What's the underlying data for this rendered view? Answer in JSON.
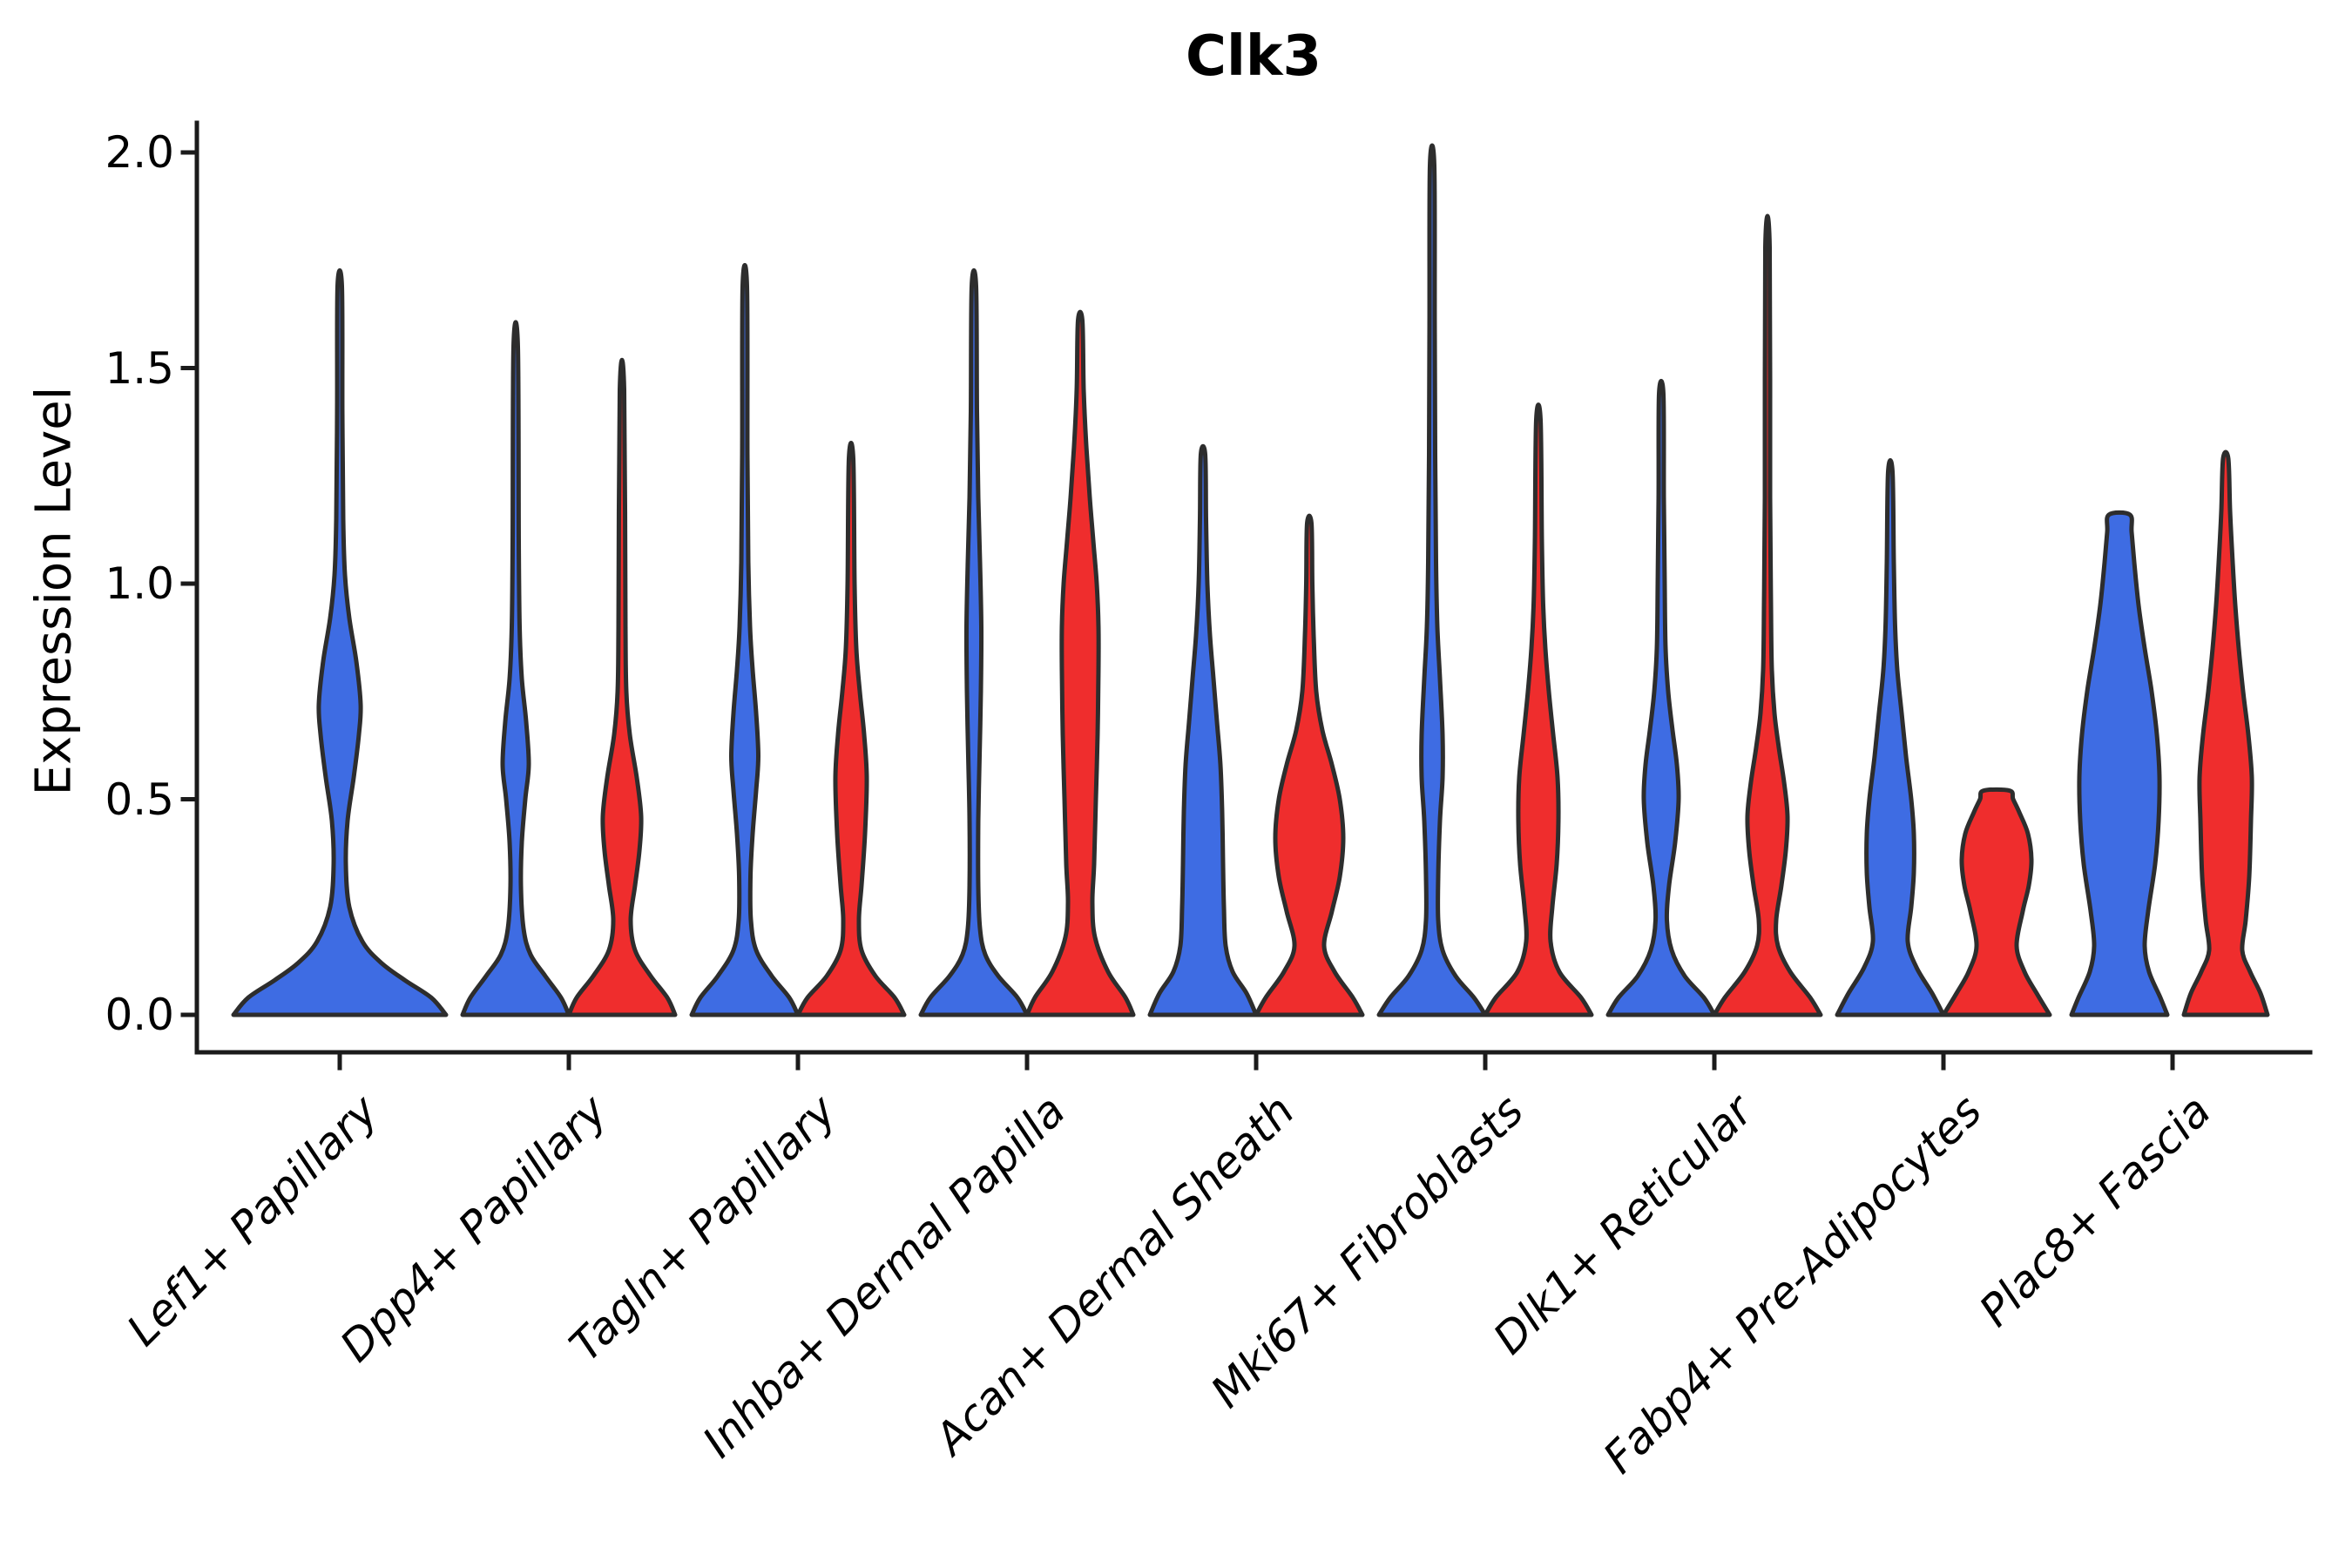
{
  "title": "Clk3",
  "chart_data": {
    "type": "violin",
    "title": "Clk3",
    "xlabel": "",
    "ylabel": "Expression Level",
    "ylim": [
      0,
      2.07
    ],
    "grid": false,
    "legend": "none",
    "y_ticks": [
      {
        "value": 0.0,
        "label": "0.0"
      },
      {
        "value": 0.5,
        "label": "0.5"
      },
      {
        "value": 1.0,
        "label": "1.0"
      },
      {
        "value": 1.5,
        "label": "1.5"
      },
      {
        "value": 2.0,
        "label": "2.0"
      }
    ],
    "categories": [
      "Lef1+ Papillary",
      "Dpp4+ Papillary",
      "Tagln+ Papillary",
      "Inhba+ Dermal Papilla",
      "Acan+ Dermal Sheath",
      "Mki67+ Fibroblasts",
      "Dlk1+ Reticular",
      "Fabp4+ Pre-Adipocytes",
      "Plac8+ Fascia"
    ],
    "series": [
      {
        "name": "blue",
        "color": "#3E6CE3"
      },
      {
        "name": "red",
        "color": "#EF2D2D"
      }
    ],
    "edge_color": "#2D2D2D",
    "axis_color": "#1B1B1B",
    "violins": [
      {
        "category": 0,
        "series": 0,
        "side": "center",
        "max": 1.69,
        "flat_top": false,
        "profile": [
          [
            0,
            122
          ],
          [
            0.04,
            105
          ],
          [
            0.08,
            75
          ],
          [
            0.12,
            48
          ],
          [
            0.17,
            26
          ],
          [
            0.25,
            11
          ],
          [
            0.35,
            7
          ],
          [
            0.45,
            9
          ],
          [
            0.55,
            16
          ],
          [
            0.65,
            22
          ],
          [
            0.72,
            24
          ],
          [
            0.82,
            19
          ],
          [
            0.92,
            11
          ],
          [
            1.02,
            6
          ],
          [
            1.15,
            4
          ],
          [
            1.4,
            3
          ],
          [
            1.69,
            2.5
          ]
        ]
      },
      {
        "category": 1,
        "series": 0,
        "side": "left",
        "max": 1.55,
        "flat_top": false,
        "profile": [
          [
            0,
            61
          ],
          [
            0.04,
            52
          ],
          [
            0.09,
            34
          ],
          [
            0.14,
            17
          ],
          [
            0.2,
            9
          ],
          [
            0.3,
            6
          ],
          [
            0.4,
            7
          ],
          [
            0.5,
            11
          ],
          [
            0.58,
            15
          ],
          [
            0.68,
            12
          ],
          [
            0.78,
            7
          ],
          [
            0.9,
            4.5
          ],
          [
            1.1,
            3.5
          ],
          [
            1.55,
            2.5
          ]
        ]
      },
      {
        "category": 1,
        "series": 1,
        "side": "right",
        "max": 1.45,
        "flat_top": false,
        "profile": [
          [
            0,
            61
          ],
          [
            0.04,
            52
          ],
          [
            0.09,
            33
          ],
          [
            0.15,
            15
          ],
          [
            0.22,
            10
          ],
          [
            0.3,
            15
          ],
          [
            0.38,
            20
          ],
          [
            0.46,
            22
          ],
          [
            0.55,
            17
          ],
          [
            0.65,
            9
          ],
          [
            0.75,
            5
          ],
          [
            0.9,
            4
          ],
          [
            1.45,
            2.5
          ]
        ]
      },
      {
        "category": 2,
        "series": 0,
        "side": "left",
        "max": 1.69,
        "flat_top": false,
        "profile": [
          [
            0,
            61
          ],
          [
            0.04,
            51
          ],
          [
            0.09,
            31
          ],
          [
            0.15,
            13
          ],
          [
            0.22,
            7
          ],
          [
            0.32,
            6.5
          ],
          [
            0.42,
            9
          ],
          [
            0.52,
            13
          ],
          [
            0.6,
            15.5
          ],
          [
            0.7,
            13
          ],
          [
            0.8,
            9
          ],
          [
            0.9,
            6
          ],
          [
            1.05,
            4
          ],
          [
            1.3,
            3
          ],
          [
            1.69,
            2.5
          ]
        ]
      },
      {
        "category": 2,
        "series": 1,
        "side": "right",
        "max": 1.29,
        "flat_top": false,
        "profile": [
          [
            0,
            61
          ],
          [
            0.04,
            50
          ],
          [
            0.09,
            28
          ],
          [
            0.15,
            12
          ],
          [
            0.22,
            9
          ],
          [
            0.3,
            12
          ],
          [
            0.42,
            16
          ],
          [
            0.55,
            18
          ],
          [
            0.65,
            15
          ],
          [
            0.75,
            10
          ],
          [
            0.85,
            6
          ],
          [
            1.0,
            4
          ],
          [
            1.29,
            2.5
          ]
        ]
      },
      {
        "category": 3,
        "series": 0,
        "side": "left",
        "max": 1.69,
        "flat_top": false,
        "profile": [
          [
            0,
            61
          ],
          [
            0.04,
            50
          ],
          [
            0.09,
            28
          ],
          [
            0.14,
            13
          ],
          [
            0.2,
            7
          ],
          [
            0.3,
            5
          ],
          [
            0.45,
            5
          ],
          [
            0.6,
            6.5
          ],
          [
            0.75,
            8
          ],
          [
            0.9,
            8.5
          ],
          [
            1.05,
            7
          ],
          [
            1.2,
            5
          ],
          [
            1.4,
            3.5
          ],
          [
            1.69,
            2.5
          ]
        ]
      },
      {
        "category": 3,
        "series": 1,
        "side": "right",
        "max": 1.61,
        "flat_top": false,
        "profile": [
          [
            0,
            61
          ],
          [
            0.04,
            52
          ],
          [
            0.1,
            32
          ],
          [
            0.18,
            17
          ],
          [
            0.26,
            14
          ],
          [
            0.35,
            16
          ],
          [
            0.5,
            18
          ],
          [
            0.65,
            20
          ],
          [
            0.8,
            21
          ],
          [
            0.9,
            21
          ],
          [
            1.0,
            19
          ],
          [
            1.1,
            15
          ],
          [
            1.2,
            11
          ],
          [
            1.32,
            7
          ],
          [
            1.45,
            4
          ],
          [
            1.61,
            2.5
          ]
        ]
      },
      {
        "category": 4,
        "series": 0,
        "side": "left",
        "max": 1.3,
        "flat_top": false,
        "profile": [
          [
            0,
            61
          ],
          [
            0.05,
            50
          ],
          [
            0.1,
            34
          ],
          [
            0.16,
            26
          ],
          [
            0.25,
            24
          ],
          [
            0.35,
            23
          ],
          [
            0.47,
            22
          ],
          [
            0.58,
            20
          ],
          [
            0.68,
            16
          ],
          [
            0.78,
            12
          ],
          [
            0.88,
            8
          ],
          [
            1.0,
            5
          ],
          [
            1.15,
            3.5
          ],
          [
            1.3,
            2.5
          ]
        ]
      },
      {
        "category": 4,
        "series": 1,
        "side": "right",
        "max": 1.14,
        "flat_top": false,
        "profile": [
          [
            0,
            61
          ],
          [
            0.04,
            50
          ],
          [
            0.1,
            29
          ],
          [
            0.16,
            17
          ],
          [
            0.24,
            26
          ],
          [
            0.32,
            35
          ],
          [
            0.41,
            39
          ],
          [
            0.5,
            35
          ],
          [
            0.58,
            26
          ],
          [
            0.66,
            15
          ],
          [
            0.75,
            8
          ],
          [
            0.88,
            5
          ],
          [
            1.0,
            3.5
          ],
          [
            1.14,
            2.5
          ]
        ]
      },
      {
        "category": 5,
        "series": 0,
        "side": "left",
        "max": 1.97,
        "flat_top": false,
        "profile": [
          [
            0,
            61
          ],
          [
            0.04,
            48
          ],
          [
            0.09,
            27
          ],
          [
            0.15,
            12
          ],
          [
            0.22,
            7
          ],
          [
            0.32,
            7
          ],
          [
            0.45,
            9
          ],
          [
            0.55,
            12
          ],
          [
            0.65,
            12
          ],
          [
            0.78,
            9
          ],
          [
            0.9,
            6
          ],
          [
            1.05,
            4.5
          ],
          [
            1.3,
            3.5
          ],
          [
            1.6,
            3
          ],
          [
            1.97,
            2.5
          ]
        ]
      },
      {
        "category": 5,
        "series": 1,
        "side": "right",
        "max": 1.38,
        "flat_top": false,
        "profile": [
          [
            0,
            61
          ],
          [
            0.04,
            49
          ],
          [
            0.1,
            24
          ],
          [
            0.17,
            14
          ],
          [
            0.25,
            16
          ],
          [
            0.35,
            21
          ],
          [
            0.45,
            23
          ],
          [
            0.55,
            22
          ],
          [
            0.65,
            17
          ],
          [
            0.75,
            12
          ],
          [
            0.85,
            8
          ],
          [
            0.95,
            5.5
          ],
          [
            1.1,
            4
          ],
          [
            1.38,
            2.5
          ]
        ]
      },
      {
        "category": 6,
        "series": 0,
        "side": "left",
        "max": 1.44,
        "flat_top": false,
        "profile": [
          [
            0,
            61
          ],
          [
            0.04,
            49
          ],
          [
            0.09,
            27
          ],
          [
            0.15,
            12
          ],
          [
            0.22,
            6.5
          ],
          [
            0.3,
            9
          ],
          [
            0.4,
            16
          ],
          [
            0.5,
            20
          ],
          [
            0.58,
            18
          ],
          [
            0.66,
            13
          ],
          [
            0.75,
            8
          ],
          [
            0.85,
            5
          ],
          [
            1.0,
            4
          ],
          [
            1.2,
            3
          ],
          [
            1.44,
            2.5
          ]
        ]
      },
      {
        "category": 6,
        "series": 1,
        "side": "right",
        "max": 1.78,
        "flat_top": false,
        "profile": [
          [
            0,
            61
          ],
          [
            0.04,
            49
          ],
          [
            0.1,
            26
          ],
          [
            0.16,
            12
          ],
          [
            0.22,
            10
          ],
          [
            0.3,
            16
          ],
          [
            0.38,
            21
          ],
          [
            0.46,
            23
          ],
          [
            0.54,
            19
          ],
          [
            0.62,
            13
          ],
          [
            0.7,
            8
          ],
          [
            0.8,
            5
          ],
          [
            0.95,
            4
          ],
          [
            1.2,
            3
          ],
          [
            1.78,
            2.5
          ]
        ]
      },
      {
        "category": 7,
        "series": 0,
        "side": "left",
        "max": 1.26,
        "flat_top": false,
        "profile": [
          [
            0,
            61
          ],
          [
            0.05,
            48
          ],
          [
            0.11,
            30
          ],
          [
            0.17,
            20
          ],
          [
            0.25,
            24
          ],
          [
            0.33,
            27
          ],
          [
            0.42,
            27
          ],
          [
            0.5,
            24
          ],
          [
            0.6,
            18
          ],
          [
            0.7,
            13
          ],
          [
            0.8,
            8
          ],
          [
            0.9,
            5.5
          ],
          [
            1.05,
            4
          ],
          [
            1.26,
            2.5
          ]
        ]
      },
      {
        "category": 7,
        "series": 1,
        "side": "right",
        "max": 0.52,
        "flat_top": true,
        "profile": [
          [
            0,
            61
          ],
          [
            0.05,
            46
          ],
          [
            0.1,
            32
          ],
          [
            0.16,
            23
          ],
          [
            0.24,
            30
          ],
          [
            0.3,
            37
          ],
          [
            0.36,
            40
          ],
          [
            0.42,
            36
          ],
          [
            0.47,
            26
          ],
          [
            0.5,
            19
          ],
          [
            0.52,
            15
          ]
        ]
      },
      {
        "category": 8,
        "series": 0,
        "side": "left",
        "max": 1.16,
        "flat_top": true,
        "profile": [
          [
            0,
            55
          ],
          [
            0.04,
            47
          ],
          [
            0.1,
            34
          ],
          [
            0.16,
            29
          ],
          [
            0.24,
            33
          ],
          [
            0.35,
            41
          ],
          [
            0.45,
            45
          ],
          [
            0.55,
            46
          ],
          [
            0.65,
            43
          ],
          [
            0.75,
            37
          ],
          [
            0.85,
            29
          ],
          [
            0.95,
            22
          ],
          [
            1.05,
            17
          ],
          [
            1.12,
            14
          ],
          [
            1.16,
            12
          ]
        ]
      },
      {
        "category": 8,
        "series": 1,
        "side": "right",
        "max": 1.29,
        "flat_top": false,
        "profile": [
          [
            0,
            48
          ],
          [
            0.05,
            40
          ],
          [
            0.1,
            28
          ],
          [
            0.15,
            19
          ],
          [
            0.22,
            23
          ],
          [
            0.32,
            27
          ],
          [
            0.45,
            29
          ],
          [
            0.55,
            30
          ],
          [
            0.65,
            26
          ],
          [
            0.75,
            20
          ],
          [
            0.85,
            15
          ],
          [
            0.95,
            11
          ],
          [
            1.05,
            8
          ],
          [
            1.17,
            5
          ],
          [
            1.29,
            3
          ]
        ]
      }
    ]
  }
}
